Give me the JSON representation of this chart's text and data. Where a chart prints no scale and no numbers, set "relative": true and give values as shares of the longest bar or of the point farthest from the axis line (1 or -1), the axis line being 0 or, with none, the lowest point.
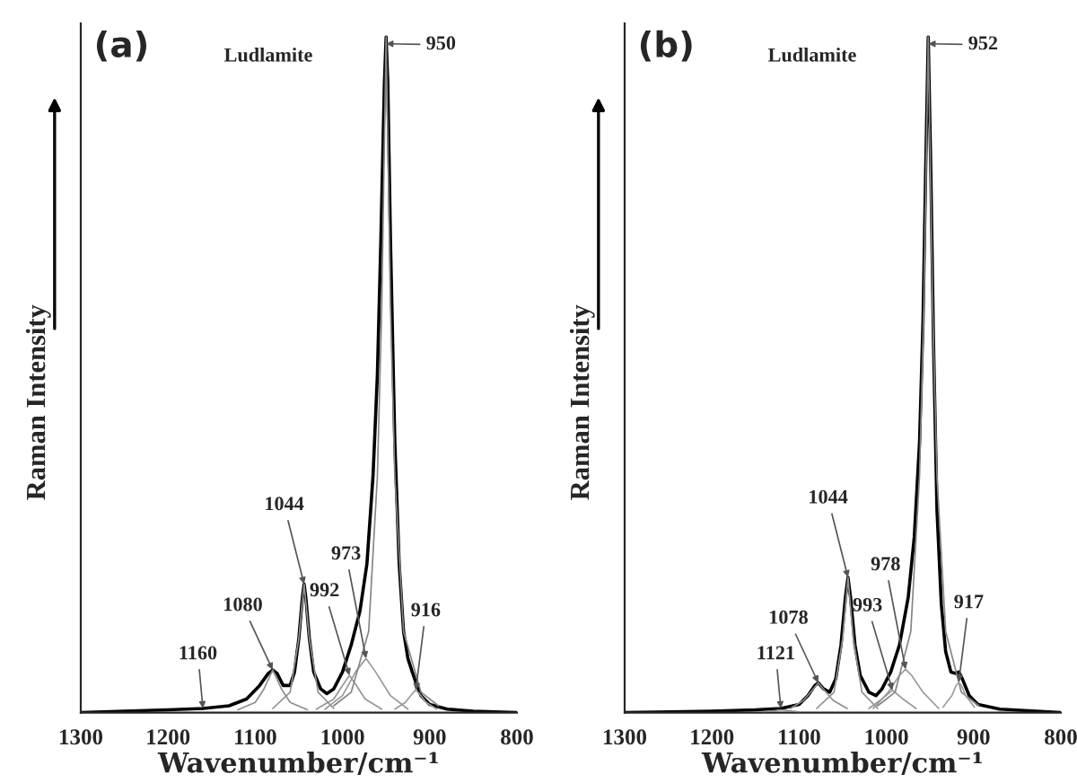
{
  "chart_data": [
    {
      "type": "line",
      "title": "(a)",
      "xlabel": "Wavenumber/cm⁻¹",
      "ylabel": "Raman Intensity",
      "relative": true,
      "xlim": [
        1300,
        800
      ],
      "xticks": [
        1300,
        1200,
        1100,
        1000,
        900,
        800
      ],
      "annotations": [
        "Ludlamite",
        {
          "text": "950",
          "x": 950,
          "y": 0.99
        },
        {
          "text": "1044",
          "x": 1044,
          "y": 0.19
        },
        {
          "text": "1080",
          "x": 1080,
          "y": 0.063
        },
        {
          "text": "1160",
          "x": 1160,
          "y": 0.006
        },
        {
          "text": "992",
          "x": 992,
          "y": 0.055
        },
        {
          "text": "973",
          "x": 973,
          "y": 0.08
        },
        {
          "text": "916",
          "x": 916,
          "y": 0.033
        }
      ],
      "series": [
        {
          "color": "#000000",
          "x": [
            1300,
            1250,
            1200,
            1160,
            1130,
            1110,
            1095,
            1085,
            1080,
            1075,
            1068,
            1060,
            1055,
            1050,
            1046,
            1044,
            1042,
            1038,
            1033,
            1025,
            1018,
            1010,
            1000,
            990,
            980,
            972,
            965,
            960,
            956,
            952,
            950,
            948,
            945,
            940,
            935,
            930,
            925,
            920,
            916,
            910,
            900,
            880,
            850,
            800
          ],
          "values": [
            0,
            0.002,
            0.004,
            0.006,
            0.01,
            0.02,
            0.04,
            0.058,
            0.063,
            0.058,
            0.04,
            0.04,
            0.06,
            0.11,
            0.17,
            0.19,
            0.17,
            0.11,
            0.06,
            0.035,
            0.028,
            0.035,
            0.06,
            0.1,
            0.15,
            0.22,
            0.35,
            0.5,
            0.7,
            0.93,
            1.0,
            0.93,
            0.7,
            0.4,
            0.22,
            0.12,
            0.08,
            0.06,
            0.045,
            0.025,
            0.012,
            0.005,
            0.002,
            0
          ]
        },
        {
          "color": "#8e8e8e",
          "x": [
            1120,
            1100,
            1090,
            1080,
            1070,
            1060,
            1040
          ],
          "values": [
            0.004,
            0.015,
            0.035,
            0.063,
            0.035,
            0.015,
            0.004
          ]
        },
        {
          "color": "#909090",
          "x": [
            1080,
            1060,
            1050,
            1044,
            1038,
            1028,
            1010
          ],
          "values": [
            0.006,
            0.03,
            0.11,
            0.19,
            0.11,
            0.03,
            0.006
          ]
        },
        {
          "color": "#969696",
          "x": [
            1030,
            1010,
            1000,
            992,
            984,
            974,
            955
          ],
          "values": [
            0.005,
            0.02,
            0.04,
            0.055,
            0.04,
            0.02,
            0.005
          ]
        },
        {
          "color": "#999999",
          "x": [
            1020,
            1000,
            985,
            973,
            962,
            945,
            925
          ],
          "values": [
            0.005,
            0.025,
            0.06,
            0.08,
            0.06,
            0.025,
            0.005
          ]
        },
        {
          "color": "#858585",
          "x": [
            1010,
            990,
            970,
            960,
            955,
            950,
            945,
            940,
            930,
            910,
            890
          ],
          "values": [
            0.01,
            0.03,
            0.12,
            0.35,
            0.6,
            1.0,
            0.6,
            0.35,
            0.12,
            0.03,
            0.01
          ]
        },
        {
          "color": "#9c9c9c",
          "x": [
            940,
            928,
            920,
            916,
            912,
            904,
            892
          ],
          "values": [
            0.005,
            0.015,
            0.028,
            0.033,
            0.028,
            0.015,
            0.005
          ]
        }
      ]
    },
    {
      "type": "line",
      "title": "(b)",
      "xlabel": "Wavenumber/cm⁻¹",
      "ylabel": "Raman Intensity",
      "relative": true,
      "xlim": [
        1300,
        800
      ],
      "xticks": [
        1300,
        1200,
        1100,
        1000,
        900,
        800
      ],
      "annotations": [
        "Ludlamite",
        {
          "text": "952",
          "x": 952,
          "y": 0.99
        },
        {
          "text": "1044",
          "x": 1044,
          "y": 0.2
        },
        {
          "text": "1078",
          "x": 1078,
          "y": 0.044
        },
        {
          "text": "1121",
          "x": 1121,
          "y": 0.006
        },
        {
          "text": "993",
          "x": 993,
          "y": 0.033
        },
        {
          "text": "978",
          "x": 978,
          "y": 0.064
        },
        {
          "text": "917",
          "x": 917,
          "y": 0.045
        }
      ],
      "series": [
        {
          "color": "#000000",
          "x": [
            1300,
            1200,
            1150,
            1121,
            1100,
            1090,
            1082,
            1078,
            1072,
            1065,
            1058,
            1052,
            1047,
            1044,
            1041,
            1036,
            1030,
            1020,
            1012,
            1005,
            995,
            985,
            975,
            968,
            962,
            958,
            955,
            952,
            949,
            946,
            942,
            937,
            932,
            926,
            920,
            917,
            913,
            905,
            895,
            870,
            800
          ],
          "values": [
            0,
            0.002,
            0.004,
            0.006,
            0.012,
            0.025,
            0.04,
            0.044,
            0.035,
            0.03,
            0.05,
            0.1,
            0.17,
            0.2,
            0.17,
            0.1,
            0.055,
            0.03,
            0.025,
            0.035,
            0.06,
            0.1,
            0.17,
            0.26,
            0.4,
            0.58,
            0.8,
            1.0,
            0.8,
            0.55,
            0.3,
            0.16,
            0.09,
            0.06,
            0.058,
            0.06,
            0.05,
            0.025,
            0.012,
            0.005,
            0
          ]
        },
        {
          "color": "#8a8a8a",
          "x": [
            1140,
            1121,
            1100
          ],
          "values": [
            0.001,
            0.004,
            0.001
          ]
        },
        {
          "color": "#8e8e8e",
          "x": [
            1110,
            1095,
            1085,
            1078,
            1071,
            1061,
            1045
          ],
          "values": [
            0.006,
            0.018,
            0.033,
            0.044,
            0.033,
            0.018,
            0.006
          ]
        },
        {
          "color": "#909090",
          "x": [
            1080,
            1060,
            1050,
            1044,
            1038,
            1028,
            1010
          ],
          "values": [
            0.006,
            0.03,
            0.11,
            0.2,
            0.11,
            0.03,
            0.006
          ]
        },
        {
          "color": "#969696",
          "x": [
            1020,
            1005,
            993,
            981,
            966
          ],
          "values": [
            0.006,
            0.02,
            0.033,
            0.02,
            0.006
          ]
        },
        {
          "color": "#999999",
          "x": [
            1015,
            998,
            985,
            978,
            971,
            958,
            940
          ],
          "values": [
            0.006,
            0.03,
            0.055,
            0.064,
            0.055,
            0.03,
            0.006
          ]
        },
        {
          "color": "#858585",
          "x": [
            1010,
            990,
            972,
            962,
            957,
            952,
            947,
            942,
            932,
            914,
            894
          ],
          "values": [
            0.01,
            0.03,
            0.12,
            0.35,
            0.6,
            1.0,
            0.6,
            0.35,
            0.12,
            0.03,
            0.01
          ]
        },
        {
          "color": "#9c9c9c",
          "x": [
            935,
            925,
            920,
            917,
            914,
            909,
            899
          ],
          "values": [
            0.008,
            0.025,
            0.04,
            0.045,
            0.04,
            0.025,
            0.008
          ]
        }
      ]
    }
  ]
}
